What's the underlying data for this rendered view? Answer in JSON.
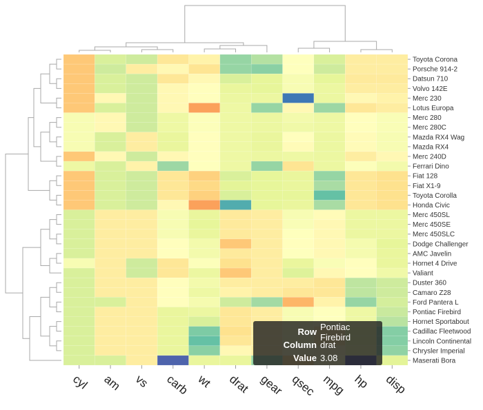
{
  "chart_data": {
    "type": "heatmap",
    "colors": {
      "scale": [
        "#5e4fa2",
        "#3288bd",
        "#66c2a5",
        "#abdda4",
        "#e6f598",
        "#ffffbf",
        "#fee08b",
        "#fdae61",
        "#f46d43",
        "#d53e4f"
      ],
      "tooltip_bg": "#222222",
      "dendrogram": "#a8a8a8"
    },
    "columns": [
      "cyl",
      "am",
      "vs",
      "carb",
      "wt",
      "drat",
      "gear",
      "qsec",
      "mpg",
      "hp",
      "disp"
    ],
    "rows": [
      "Toyota Corona",
      "Porsche 914-2",
      "Datsun 710",
      "Volvo 142E",
      "Merc 230",
      "Lotus Europa",
      "Merc 280",
      "Merc 280C",
      "Mazda RX4 Wag",
      "Mazda RX4",
      "Merc 240D",
      "Ferrari Dino",
      "Fiat 128",
      "Fiat X1-9",
      "Toyota Corolla",
      "Honda Civic",
      "Merc 450SL",
      "Merc 450SE",
      "Merc 450SLC",
      "Dodge Challenger",
      "AMC Javelin",
      "Hornet 4 Drive",
      "Valiant",
      "Duster 360",
      "Camaro Z28",
      "Ford Pantera L",
      "Pontiac Firebird",
      "Hornet Sportabout",
      "Cadillac Fleetwood",
      "Lincoln Continental",
      "Chrysler Imperial",
      "Maserati Bora"
    ],
    "values": [
      [
        0.72,
        0.42,
        0.4,
        0.64,
        0.6,
        0.3,
        0.35,
        0.55,
        0.42,
        0.62,
        0.62
      ],
      [
        0.72,
        0.4,
        0.62,
        0.58,
        0.65,
        0.3,
        0.28,
        0.55,
        0.4,
        0.62,
        0.62
      ],
      [
        0.72,
        0.42,
        0.4,
        0.64,
        0.58,
        0.42,
        0.45,
        0.52,
        0.45,
        0.63,
        0.63
      ],
      [
        0.72,
        0.42,
        0.4,
        0.58,
        0.56,
        0.46,
        0.45,
        0.52,
        0.47,
        0.62,
        0.62
      ],
      [
        0.72,
        0.58,
        0.4,
        0.58,
        0.56,
        0.47,
        0.47,
        0.08,
        0.47,
        0.58,
        0.6
      ],
      [
        0.72,
        0.42,
        0.4,
        0.58,
        0.8,
        0.48,
        0.3,
        0.58,
        0.31,
        0.64,
        0.62
      ],
      [
        0.52,
        0.58,
        0.4,
        0.48,
        0.54,
        0.48,
        0.47,
        0.5,
        0.48,
        0.56,
        0.53
      ],
      [
        0.52,
        0.58,
        0.4,
        0.48,
        0.54,
        0.48,
        0.47,
        0.49,
        0.48,
        0.56,
        0.53
      ],
      [
        0.52,
        0.42,
        0.62,
        0.46,
        0.56,
        0.48,
        0.46,
        0.56,
        0.47,
        0.57,
        0.52
      ],
      [
        0.52,
        0.42,
        0.62,
        0.46,
        0.56,
        0.48,
        0.46,
        0.57,
        0.47,
        0.57,
        0.52
      ],
      [
        0.72,
        0.58,
        0.4,
        0.58,
        0.56,
        0.48,
        0.47,
        0.48,
        0.47,
        0.62,
        0.58
      ],
      [
        0.48,
        0.42,
        0.6,
        0.31,
        0.55,
        0.48,
        0.3,
        0.65,
        0.47,
        0.54,
        0.5
      ],
      [
        0.72,
        0.42,
        0.4,
        0.64,
        0.7,
        0.42,
        0.45,
        0.46,
        0.3,
        0.64,
        0.66
      ],
      [
        0.72,
        0.42,
        0.4,
        0.64,
        0.68,
        0.44,
        0.45,
        0.46,
        0.33,
        0.64,
        0.66
      ],
      [
        0.72,
        0.42,
        0.4,
        0.64,
        0.7,
        0.42,
        0.45,
        0.45,
        0.22,
        0.64,
        0.66
      ],
      [
        0.72,
        0.42,
        0.4,
        0.58,
        0.8,
        0.18,
        0.45,
        0.46,
        0.33,
        0.64,
        0.66
      ],
      [
        0.42,
        0.62,
        0.62,
        0.52,
        0.46,
        0.63,
        0.62,
        0.52,
        0.57,
        0.47,
        0.47
      ],
      [
        0.42,
        0.62,
        0.62,
        0.52,
        0.45,
        0.63,
        0.62,
        0.53,
        0.58,
        0.47,
        0.47
      ],
      [
        0.42,
        0.62,
        0.62,
        0.52,
        0.46,
        0.63,
        0.62,
        0.55,
        0.58,
        0.47,
        0.47
      ],
      [
        0.42,
        0.62,
        0.62,
        0.56,
        0.5,
        0.72,
        0.62,
        0.56,
        0.58,
        0.51,
        0.45
      ],
      [
        0.42,
        0.62,
        0.62,
        0.56,
        0.5,
        0.63,
        0.62,
        0.55,
        0.58,
        0.51,
        0.46
      ],
      [
        0.52,
        0.62,
        0.4,
        0.64,
        0.54,
        0.66,
        0.62,
        0.46,
        0.53,
        0.56,
        0.46
      ],
      [
        0.42,
        0.62,
        0.4,
        0.64,
        0.47,
        0.72,
        0.62,
        0.43,
        0.58,
        0.56,
        0.49
      ],
      [
        0.42,
        0.62,
        0.62,
        0.56,
        0.5,
        0.62,
        0.62,
        0.62,
        0.64,
        0.37,
        0.4
      ],
      [
        0.42,
        0.62,
        0.62,
        0.56,
        0.48,
        0.6,
        0.62,
        0.64,
        0.64,
        0.37,
        0.4
      ],
      [
        0.42,
        0.42,
        0.62,
        0.56,
        0.51,
        0.4,
        0.32,
        0.76,
        0.6,
        0.3,
        0.41
      ],
      [
        0.42,
        0.62,
        0.62,
        0.46,
        0.47,
        0.64,
        0.62,
        0.52,
        0.55,
        0.48,
        0.39
      ],
      [
        0.42,
        0.62,
        0.62,
        0.46,
        0.42,
        0.64,
        0.62,
        0.52,
        0.55,
        0.48,
        0.36
      ],
      [
        0.42,
        0.62,
        0.62,
        0.46,
        0.26,
        0.66,
        0.62,
        0.52,
        0.64,
        0.46,
        0.27
      ],
      [
        0.42,
        0.62,
        0.62,
        0.46,
        0.22,
        0.64,
        0.62,
        0.52,
        0.64,
        0.46,
        0.27
      ],
      [
        0.42,
        0.62,
        0.62,
        0.46,
        0.28,
        0.58,
        0.62,
        0.55,
        0.58,
        0.47,
        0.29
      ],
      [
        0.42,
        0.42,
        0.62,
        0.04,
        0.46,
        0.46,
        0.3,
        0.68,
        0.55,
        0.02,
        0.44
      ]
    ],
    "hover": {
      "row": "Pontiac Firebird",
      "column": "drat",
      "value": "3.08"
    }
  },
  "tooltip": {
    "row_label": "Row",
    "row_value": "Pontiac Firebird",
    "column_label": "Column",
    "column_value": "drat",
    "value_label": "Value",
    "value_value": "3.08"
  }
}
